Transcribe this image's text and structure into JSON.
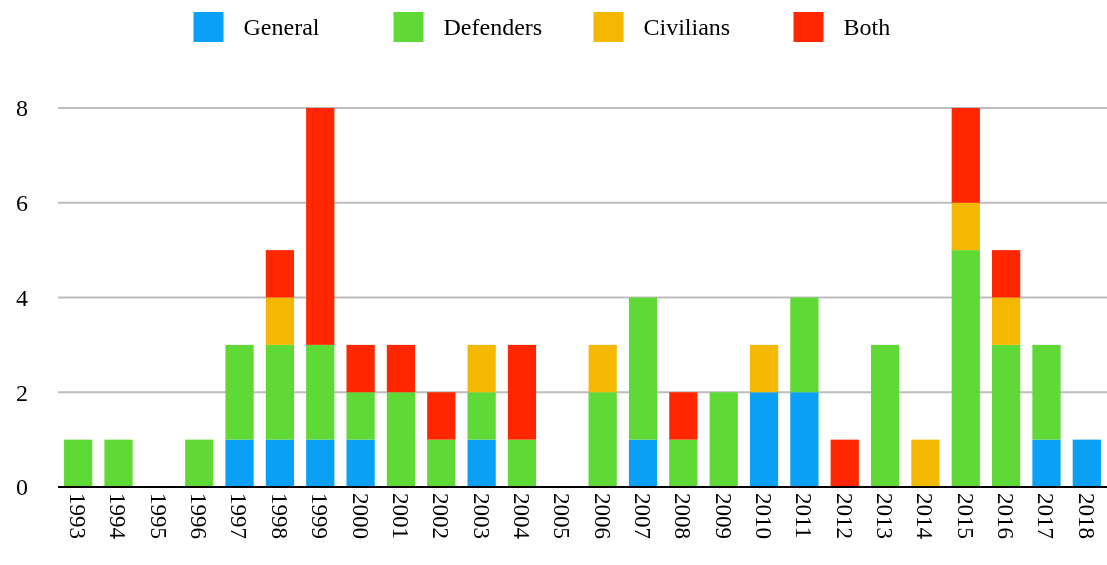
{
  "chart_data": {
    "type": "bar",
    "stacked": true,
    "categories": [
      "1993",
      "1994",
      "1995",
      "1996",
      "1997",
      "1998",
      "1999",
      "2000",
      "2001",
      "2002",
      "2003",
      "2004",
      "2005",
      "2006",
      "2007",
      "2008",
      "2009",
      "2010",
      "2011",
      "2012",
      "2013",
      "2014",
      "2015",
      "2016",
      "2017",
      "2018"
    ],
    "series": [
      {
        "name": "General",
        "color": "#0aa0f5",
        "values": [
          0,
          0,
          0,
          0,
          1,
          1,
          1,
          1,
          0,
          0,
          1,
          0,
          0,
          0,
          1,
          0,
          0,
          2,
          2,
          0,
          0,
          0,
          0,
          0,
          1,
          1
        ]
      },
      {
        "name": "Defenders",
        "color": "#5fd936",
        "values": [
          1,
          1,
          0,
          1,
          2,
          2,
          2,
          1,
          2,
          1,
          1,
          1,
          0,
          2,
          3,
          1,
          2,
          0,
          2,
          0,
          3,
          0,
          5,
          3,
          2,
          0
        ]
      },
      {
        "name": "Civilians",
        "color": "#f5b800",
        "values": [
          0,
          0,
          0,
          0,
          0,
          1,
          0,
          0,
          0,
          0,
          1,
          0,
          0,
          1,
          0,
          0,
          0,
          1,
          0,
          0,
          0,
          1,
          1,
          1,
          0,
          0
        ]
      },
      {
        "name": "Both",
        "color": "#ff2600",
        "values": [
          0,
          0,
          0,
          0,
          0,
          1,
          5,
          1,
          1,
          1,
          0,
          2,
          0,
          0,
          0,
          1,
          0,
          0,
          0,
          1,
          0,
          0,
          2,
          1,
          0,
          0
        ]
      }
    ],
    "ylim": [
      0,
      8
    ],
    "yticks": [
      0,
      2,
      4,
      6,
      8
    ],
    "grid": "y",
    "legend": "top"
  }
}
